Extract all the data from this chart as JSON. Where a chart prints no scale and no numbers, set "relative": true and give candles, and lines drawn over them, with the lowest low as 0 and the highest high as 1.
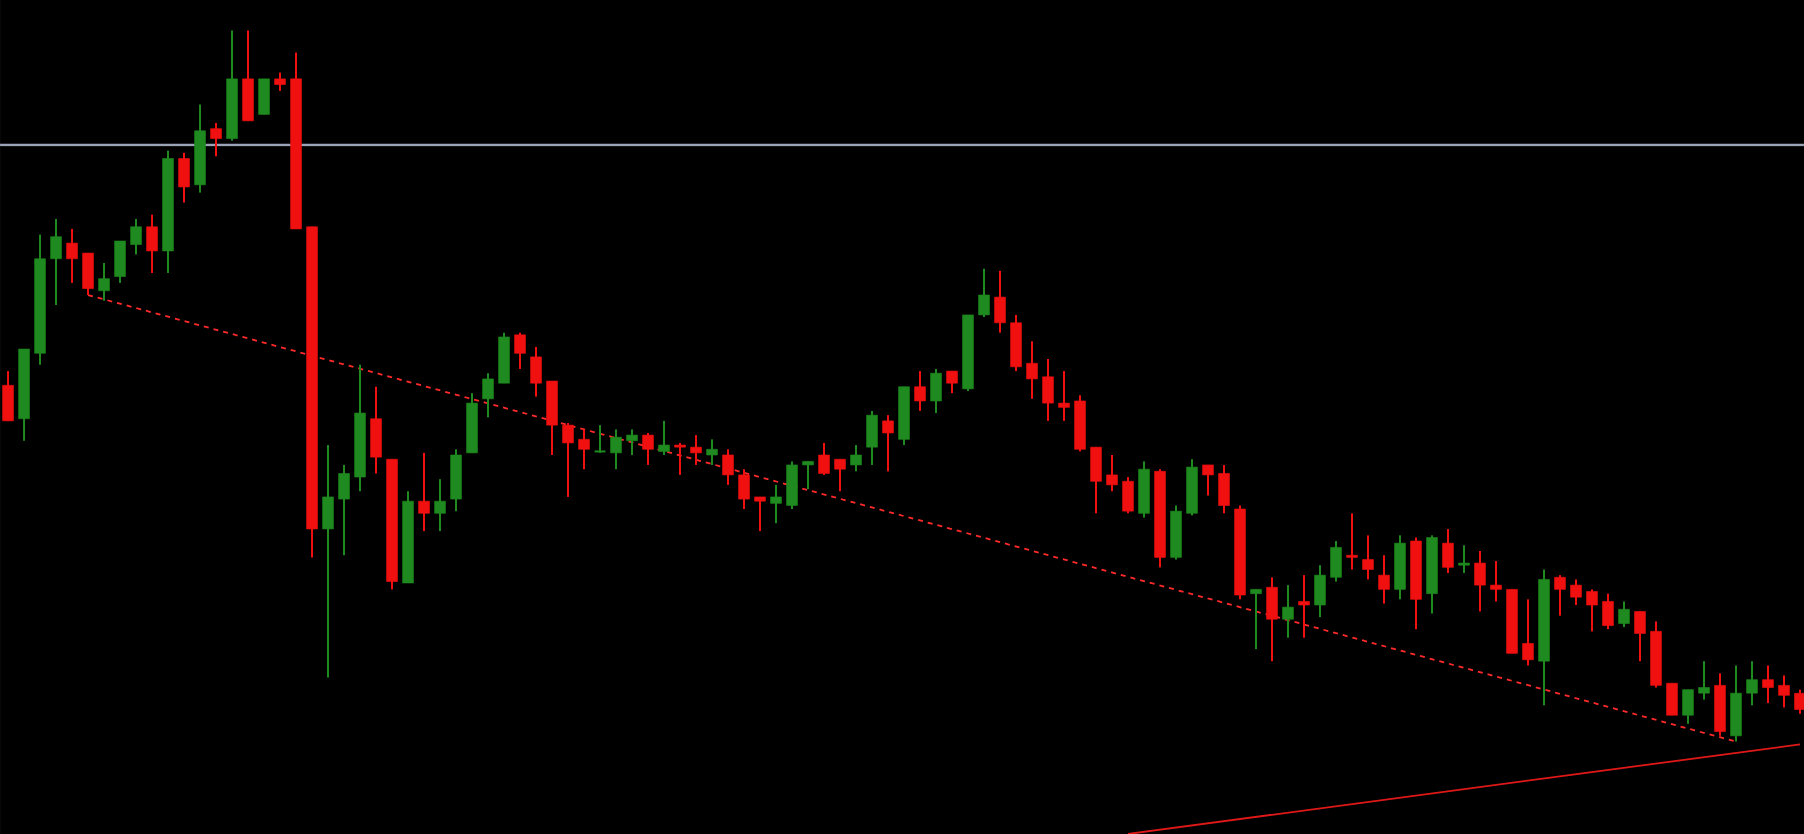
{
  "chart_data": {
    "type": "candlestick",
    "relative": true,
    "categories": [
      null,
      null,
      null,
      null,
      null,
      null,
      null,
      null,
      null,
      null,
      null,
      null,
      null,
      null,
      null,
      null,
      null,
      null,
      null,
      null,
      null,
      null,
      null,
      null,
      null,
      null,
      null,
      null,
      null,
      null,
      null,
      null,
      null,
      null,
      null,
      null,
      null,
      null,
      null,
      null,
      null,
      null,
      null,
      null,
      null,
      null,
      null,
      null,
      null,
      null,
      null,
      null,
      null,
      null,
      null,
      null,
      null,
      null,
      null,
      null,
      null,
      null,
      null,
      null,
      null,
      null,
      null,
      null,
      null,
      null,
      null,
      null,
      null,
      null,
      null,
      null,
      null,
      null,
      null,
      null,
      null,
      null,
      null,
      null,
      null,
      null,
      null,
      null,
      null,
      null,
      null,
      null,
      null,
      null,
      null,
      null,
      null,
      null,
      null,
      null,
      null,
      null,
      null,
      null,
      null,
      null,
      null,
      null,
      null,
      null,
      null,
      null,
      null
    ],
    "ohlc": [
      [
        0.501,
        0.521,
        0.451,
        0.451
      ],
      [
        0.454,
        0.552,
        0.423,
        0.552
      ],
      [
        0.546,
        0.713,
        0.53,
        0.679
      ],
      [
        0.679,
        0.735,
        0.614,
        0.71
      ],
      [
        0.701,
        0.721,
        0.645,
        0.679
      ],
      [
        0.687,
        0.687,
        0.628,
        0.637
      ],
      [
        0.634,
        0.673,
        0.62,
        0.651
      ],
      [
        0.654,
        0.704,
        0.645,
        0.704
      ],
      [
        0.699,
        0.735,
        0.685,
        0.724
      ],
      [
        0.724,
        0.741,
        0.659,
        0.69
      ],
      [
        0.69,
        0.831,
        0.659,
        0.82
      ],
      [
        0.82,
        0.828,
        0.758,
        0.78
      ],
      [
        0.783,
        0.896,
        0.772,
        0.859
      ],
      [
        0.862,
        0.87,
        0.823,
        0.848
      ],
      [
        0.848,
        1,
        0.845,
        0.932
      ],
      [
        0.932,
        1,
        0.873,
        0.873
      ],
      [
        0.882,
        0.932,
        0.882,
        0.932
      ],
      [
        0.932,
        0.941,
        0.915,
        0.924
      ],
      [
        0.932,
        0.969,
        0.721,
        0.721
      ],
      [
        0.724,
        0.724,
        0.259,
        0.299
      ],
      [
        0.299,
        0.417,
        0.09,
        0.344
      ],
      [
        0.341,
        0.389,
        0.262,
        0.377
      ],
      [
        0.372,
        0.53,
        0.352,
        0.462
      ],
      [
        0.454,
        0.499,
        0.377,
        0.4
      ],
      [
        0.397,
        0.397,
        0.214,
        0.225
      ],
      [
        0.223,
        0.352,
        0.223,
        0.338
      ],
      [
        0.338,
        0.406,
        0.296,
        0.321
      ],
      [
        0.321,
        0.369,
        0.296,
        0.338
      ],
      [
        0.341,
        0.411,
        0.324,
        0.403
      ],
      [
        0.406,
        0.49,
        0.406,
        0.476
      ],
      [
        0.482,
        0.518,
        0.456,
        0.51
      ],
      [
        0.504,
        0.575,
        0.504,
        0.569
      ],
      [
        0.572,
        0.575,
        0.524,
        0.546
      ],
      [
        0.541,
        0.555,
        0.485,
        0.504
      ],
      [
        0.507,
        0.507,
        0.403,
        0.445
      ],
      [
        0.445,
        0.448,
        0.344,
        0.42
      ],
      [
        0.425,
        0.439,
        0.383,
        0.411
      ],
      [
        0.408,
        0.445,
        0.406,
        0.408
      ],
      [
        0.406,
        0.439,
        0.383,
        0.428
      ],
      [
        0.423,
        0.439,
        0.403,
        0.431
      ],
      [
        0.431,
        0.434,
        0.389,
        0.411
      ],
      [
        0.408,
        0.451,
        0.403,
        0.417
      ],
      [
        0.417,
        0.42,
        0.375,
        0.414
      ],
      [
        0.414,
        0.431,
        0.389,
        0.406
      ],
      [
        0.403,
        0.425,
        0.389,
        0.411
      ],
      [
        0.403,
        0.411,
        0.361,
        0.375
      ],
      [
        0.375,
        0.383,
        0.327,
        0.341
      ],
      [
        0.344,
        0.344,
        0.296,
        0.338
      ],
      [
        0.335,
        0.361,
        0.307,
        0.344
      ],
      [
        0.332,
        0.394,
        0.327,
        0.389
      ],
      [
        0.389,
        0.394,
        0.355,
        0.394
      ],
      [
        0.403,
        0.42,
        0.375,
        0.377
      ],
      [
        0.397,
        0.397,
        0.352,
        0.383
      ],
      [
        0.389,
        0.417,
        0.38,
        0.403
      ],
      [
        0.414,
        0.465,
        0.389,
        0.459
      ],
      [
        0.451,
        0.459,
        0.38,
        0.434
      ],
      [
        0.425,
        0.499,
        0.417,
        0.499
      ],
      [
        0.499,
        0.521,
        0.465,
        0.479
      ],
      [
        0.479,
        0.524,
        0.462,
        0.518
      ],
      [
        0.521,
        0.521,
        0.49,
        0.504
      ],
      [
        0.496,
        0.6,
        0.493,
        0.6
      ],
      [
        0.6,
        0.665,
        0.597,
        0.628
      ],
      [
        0.625,
        0.662,
        0.575,
        0.589
      ],
      [
        0.589,
        0.6,
        0.521,
        0.527
      ],
      [
        0.532,
        0.563,
        0.482,
        0.51
      ],
      [
        0.513,
        0.538,
        0.451,
        0.476
      ],
      [
        0.476,
        0.521,
        0.451,
        0.47
      ],
      [
        0.479,
        0.487,
        0.408,
        0.411
      ],
      [
        0.414,
        0.414,
        0.321,
        0.366
      ],
      [
        0.375,
        0.403,
        0.352,
        0.361
      ],
      [
        0.366,
        0.372,
        0.321,
        0.324
      ],
      [
        0.321,
        0.394,
        0.315,
        0.383
      ],
      [
        0.38,
        0.383,
        0.245,
        0.259
      ],
      [
        0.259,
        0.332,
        0.256,
        0.324
      ],
      [
        0.321,
        0.397,
        0.318,
        0.386
      ],
      [
        0.389,
        0.389,
        0.346,
        0.375
      ],
      [
        0.377,
        0.389,
        0.321,
        0.332
      ],
      [
        0.327,
        0.332,
        0.2,
        0.206
      ],
      [
        0.208,
        0.214,
        0.13,
        0.214
      ],
      [
        0.217,
        0.231,
        0.113,
        0.172
      ],
      [
        0.172,
        0.22,
        0.146,
        0.189
      ],
      [
        0.197,
        0.234,
        0.146,
        0.192
      ],
      [
        0.192,
        0.248,
        0.175,
        0.234
      ],
      [
        0.231,
        0.282,
        0.225,
        0.273
      ],
      [
        0.262,
        0.321,
        0.242,
        0.259
      ],
      [
        0.256,
        0.29,
        0.228,
        0.242
      ],
      [
        0.234,
        0.262,
        0.194,
        0.214
      ],
      [
        0.214,
        0.29,
        0.2,
        0.279
      ],
      [
        0.282,
        0.287,
        0.158,
        0.2
      ],
      [
        0.208,
        0.29,
        0.18,
        0.287
      ],
      [
        0.279,
        0.299,
        0.237,
        0.245
      ],
      [
        0.248,
        0.276,
        0.237,
        0.251
      ],
      [
        0.251,
        0.268,
        0.183,
        0.22
      ],
      [
        0.22,
        0.254,
        0.197,
        0.214
      ],
      [
        0.214,
        0.214,
        0.124,
        0.124
      ],
      [
        0.138,
        0.2,
        0.107,
        0.115
      ],
      [
        0.113,
        0.242,
        0.051,
        0.228
      ],
      [
        0.231,
        0.234,
        0.177,
        0.214
      ],
      [
        0.22,
        0.228,
        0.192,
        0.203
      ],
      [
        0.211,
        0.214,
        0.155,
        0.192
      ],
      [
        0.197,
        0.208,
        0.158,
        0.163
      ],
      [
        0.166,
        0.197,
        0.161,
        0.186
      ],
      [
        0.183,
        0.183,
        0.113,
        0.152
      ],
      [
        0.155,
        0.169,
        0.076,
        0.079
      ],
      [
        0.082,
        0.082,
        0.037,
        0.037
      ],
      [
        0.037,
        0.073,
        0.025,
        0.073
      ],
      [
        0.068,
        0.113,
        0.059,
        0.076
      ],
      [
        0.079,
        0.096,
        0.008,
        0.014
      ],
      [
        0.008,
        0.107,
        0,
        0.068
      ],
      [
        0.068,
        0.113,
        0.051,
        0.087
      ],
      [
        0.087,
        0.107,
        0.054,
        0.076
      ],
      [
        0.079,
        0.093,
        0.048,
        0.065
      ],
      [
        0.068,
        0.073,
        0.039,
        0.045
      ]
    ],
    "series": [
      {
        "type": "line",
        "values": [
          null,
          null,
          null,
          null,
          null,
          0.628,
          null,
          null,
          null,
          null,
          null,
          null,
          null,
          null,
          null,
          null,
          null,
          null,
          null,
          null,
          null,
          null,
          null,
          null,
          null,
          null,
          null,
          null,
          null,
          null,
          null,
          null,
          null,
          null,
          null,
          null,
          null,
          null,
          null,
          null,
          null,
          null,
          null,
          null,
          null,
          null,
          null,
          null,
          null,
          null,
          null,
          null,
          null,
          null,
          null,
          null,
          null,
          null,
          null,
          null,
          null,
          null,
          null,
          null,
          null,
          null,
          null,
          null,
          null,
          null,
          null,
          null,
          null,
          null,
          null,
          null,
          null,
          null,
          null,
          null,
          null,
          null,
          null,
          null,
          null,
          null,
          null,
          null,
          null,
          null,
          null,
          null,
          null,
          null,
          null,
          null,
          null,
          null,
          null,
          null,
          null,
          null,
          null,
          null,
          null,
          null,
          null,
          null,
          0,
          null,
          null,
          null,
          null
        ],
        "color": "#ff2a2a",
        "line_style": "dashed"
      },
      {
        "type": "line",
        "values": [
          null,
          null,
          null,
          null,
          null,
          null,
          null,
          null,
          null,
          null,
          null,
          null,
          null,
          null,
          null,
          null,
          null,
          null,
          null,
          null,
          null,
          null,
          null,
          null,
          null,
          null,
          null,
          null,
          null,
          null,
          null,
          null,
          null,
          null,
          null,
          null,
          null,
          null,
          null,
          null,
          null,
          null,
          null,
          null,
          null,
          null,
          null,
          null,
          null,
          null,
          null,
          null,
          null,
          null,
          null,
          null,
          null,
          null,
          null,
          null,
          null,
          null,
          null,
          null,
          null,
          null,
          null,
          null,
          null,
          null,
          -0.13,
          null,
          null,
          null,
          null,
          null,
          null,
          null,
          null,
          null,
          null,
          null,
          null,
          null,
          null,
          null,
          null,
          null,
          null,
          null,
          null,
          null,
          null,
          null,
          null,
          null,
          null,
          null,
          null,
          null,
          null,
          null,
          null,
          null,
          null,
          null,
          null,
          null,
          null,
          null,
          null,
          null,
          -0.004
        ],
        "color": "#e01818",
        "line_style": "solid"
      }
    ],
    "ref_lines": [
      {
        "axis": "y",
        "value": 0.839,
        "color": "#9ba3b6"
      }
    ]
  }
}
